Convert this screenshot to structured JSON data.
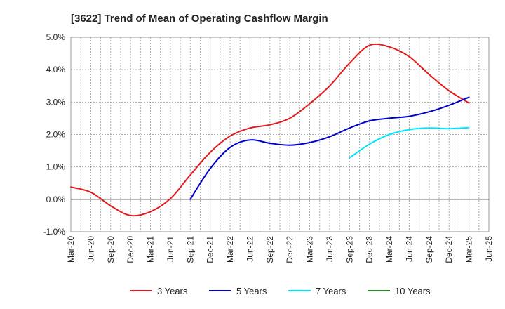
{
  "chart_data": {
    "type": "line",
    "title": "[3622]  Trend of Mean of Operating Cashflow Margin",
    "xlabel": "",
    "ylabel": "",
    "x_ticks": [
      "Mar-20",
      "Jun-20",
      "Sep-20",
      "Dec-20",
      "Mar-21",
      "Jun-21",
      "Sep-21",
      "Dec-21",
      "Mar-22",
      "Jun-22",
      "Sep-22",
      "Dec-22",
      "Mar-23",
      "Jun-23",
      "Sep-23",
      "Dec-23",
      "Mar-24",
      "Jun-24",
      "Sep-24",
      "Dec-24",
      "Mar-25",
      "Jun-25"
    ],
    "y_ticks": [
      "5.0%",
      "4.0%",
      "3.0%",
      "2.0%",
      "1.0%",
      "0.0%",
      "-1.0%"
    ],
    "y_tick_values": [
      5,
      4,
      3,
      2,
      1,
      0,
      -1
    ],
    "ylim": [
      -1,
      5
    ],
    "grid": true,
    "legend_position": "bottom",
    "series": [
      {
        "name": "3 Years",
        "color": "#e41a1c",
        "x": [
          "Mar-20",
          "Jun-20",
          "Sep-20",
          "Dec-20",
          "Mar-21",
          "Jun-21",
          "Sep-21",
          "Dec-21",
          "Mar-22",
          "Jun-22",
          "Sep-22",
          "Dec-22",
          "Mar-23",
          "Jun-23",
          "Sep-23",
          "Dec-23",
          "Mar-24",
          "Jun-24",
          "Sep-24",
          "Dec-24",
          "Mar-25"
        ],
        "values": [
          0.38,
          0.22,
          -0.2,
          -0.5,
          -0.38,
          0.02,
          0.75,
          1.45,
          1.95,
          2.2,
          2.3,
          2.5,
          2.95,
          3.5,
          4.2,
          4.75,
          4.7,
          4.4,
          3.85,
          3.35,
          2.97
        ]
      },
      {
        "name": "5 Years",
        "color": "#0000cc",
        "x": [
          "Sep-21",
          "Dec-21",
          "Mar-22",
          "Jun-22",
          "Sep-22",
          "Dec-22",
          "Mar-23",
          "Jun-23",
          "Sep-23",
          "Dec-23",
          "Mar-24",
          "Jun-24",
          "Sep-24",
          "Dec-24",
          "Mar-25"
        ],
        "values": [
          0.0,
          0.95,
          1.6,
          1.83,
          1.73,
          1.67,
          1.75,
          1.93,
          2.2,
          2.42,
          2.5,
          2.56,
          2.7,
          2.9,
          3.15
        ]
      },
      {
        "name": "7 Years",
        "color": "#00e5ff",
        "x": [
          "Sep-23",
          "Dec-23",
          "Mar-24",
          "Jun-24",
          "Sep-24",
          "Dec-24",
          "Mar-25"
        ],
        "values": [
          1.28,
          1.7,
          2.0,
          2.15,
          2.2,
          2.18,
          2.21
        ]
      },
      {
        "name": "10 Years",
        "color": "#228b22",
        "x": [],
        "values": []
      }
    ]
  }
}
